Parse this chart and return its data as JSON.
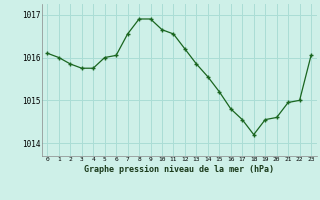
{
  "x": [
    0,
    1,
    2,
    3,
    4,
    5,
    6,
    7,
    8,
    9,
    10,
    11,
    12,
    13,
    14,
    15,
    16,
    17,
    18,
    19,
    20,
    21,
    22,
    23
  ],
  "y": [
    1016.1,
    1016.0,
    1015.85,
    1015.75,
    1015.75,
    1016.0,
    1016.05,
    1016.55,
    1016.9,
    1016.9,
    1016.65,
    1016.55,
    1016.2,
    1015.85,
    1015.55,
    1015.2,
    1014.8,
    1014.55,
    1014.2,
    1014.55,
    1014.6,
    1014.95,
    1015.0,
    1016.05
  ],
  "bg_color": "#cef0e8",
  "grid_color": "#aaddd5",
  "line_color": "#1a6620",
  "marker_color": "#1a6620",
  "xlabel": "Graphe pression niveau de la mer (hPa)",
  "ylim": [
    1013.7,
    1017.25
  ],
  "yticks": [
    1014,
    1015,
    1016,
    1017
  ],
  "xlim": [
    -0.5,
    23.5
  ],
  "xticks": [
    0,
    1,
    2,
    3,
    4,
    5,
    6,
    7,
    8,
    9,
    10,
    11,
    12,
    13,
    14,
    15,
    16,
    17,
    18,
    19,
    20,
    21,
    22,
    23
  ]
}
